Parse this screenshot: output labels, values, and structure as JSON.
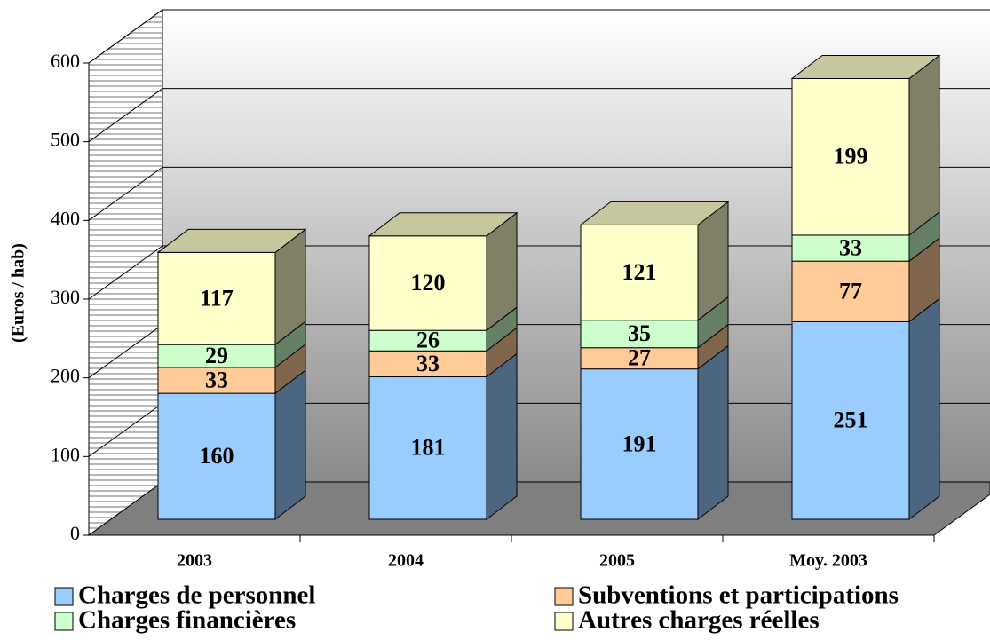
{
  "chart_data": {
    "type": "bar3d_stacked",
    "y_label": "(Euros / hab)",
    "categories": [
      "2003",
      "2004",
      "2005",
      "Moy. 2003"
    ],
    "series": [
      {
        "name": "Charges de personnel",
        "color": "#99ccff",
        "values": [
          160,
          181,
          191,
          251
        ]
      },
      {
        "name": "Subventions et participations",
        "color": "#ffcc99",
        "values": [
          33,
          33,
          27,
          77
        ]
      },
      {
        "name": "Charges financières",
        "color": "#ccffcc",
        "values": [
          29,
          26,
          35,
          33
        ]
      },
      {
        "name": "Autres charges réelles",
        "color": "#ffffcc",
        "values": [
          117,
          120,
          121,
          199
        ]
      }
    ],
    "ylim": [
      0,
      600
    ],
    "yticks": [
      0,
      100,
      200,
      300,
      400,
      500,
      600
    ],
    "grid": true
  }
}
